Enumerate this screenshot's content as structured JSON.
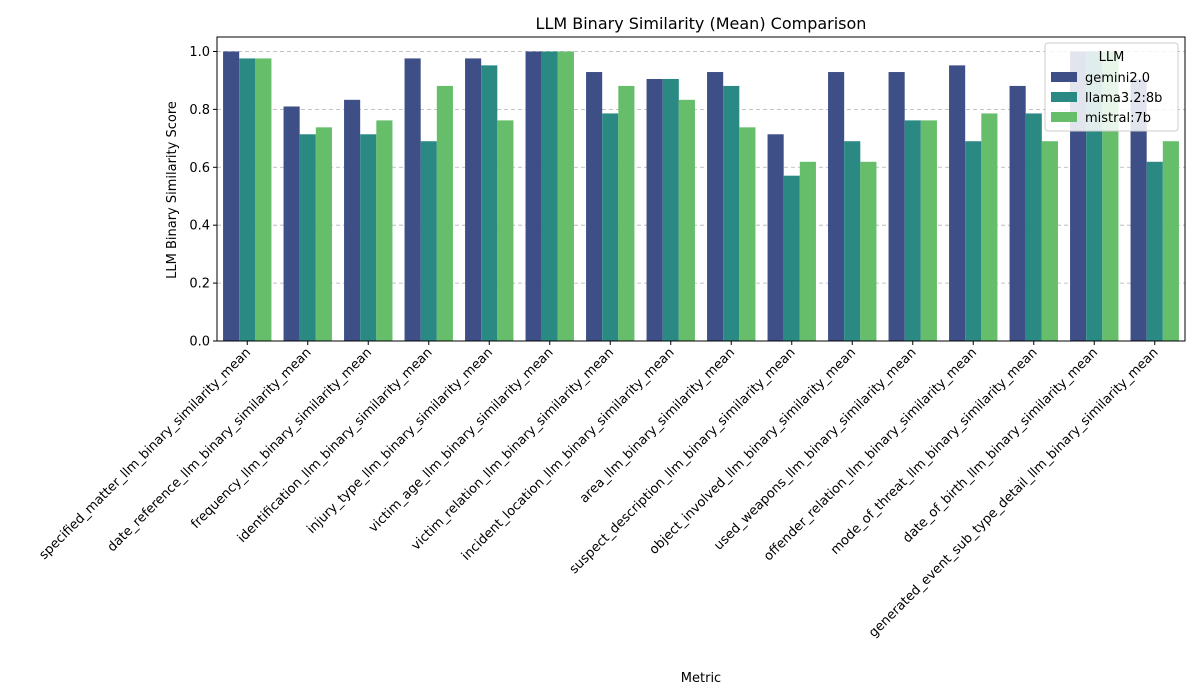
{
  "chart_data": {
    "type": "bar",
    "title": "LLM Binary Similarity (Mean) Comparison",
    "xlabel": "Metric",
    "ylabel": "LLM Binary Similarity Score",
    "ylim": [
      0,
      1.05
    ],
    "yticks": [
      0.0,
      0.2,
      0.4,
      0.6,
      0.8,
      1.0
    ],
    "ytick_labels": [
      "0.0",
      "0.2",
      "0.4",
      "0.6",
      "0.8",
      "1.0"
    ],
    "grid": true,
    "legend": {
      "title": "LLM",
      "placement": "top-right"
    },
    "categories": [
      "specified_matter_llm_binary_similarity_mean",
      "date_reference_llm_binary_similarity_mean",
      "frequency_llm_binary_similarity_mean",
      "identification_llm_binary_similarity_mean",
      "injury_type_llm_binary_similarity_mean",
      "victim_age_llm_binary_similarity_mean",
      "victim_relation_llm_binary_similarity_mean",
      "incident_location_llm_binary_similarity_mean",
      "area_llm_binary_similarity_mean",
      "suspect_description_llm_binary_similarity_mean",
      "object_involved_llm_binary_similarity_mean",
      "used_weapons_llm_binary_similarity_mean",
      "offender_relation_llm_binary_similarity_mean",
      "mode_of_threat_llm_binary_similarity_mean",
      "date_of_birth_llm_binary_similarity_mean",
      "generated_event_sub_type_detail_llm_binary_similarity_mean"
    ],
    "series": [
      {
        "name": "gemini2.0",
        "color": "#3e4f87",
        "values": [
          1.0,
          0.81,
          0.833,
          0.976,
          0.976,
          1.0,
          0.929,
          0.905,
          0.929,
          0.714,
          0.929,
          0.929,
          0.952,
          0.881,
          1.0,
          0.905
        ]
      },
      {
        "name": "llama3.2:8b",
        "color": "#2a8a83",
        "values": [
          0.976,
          0.714,
          0.714,
          0.69,
          0.952,
          1.0,
          0.786,
          0.905,
          0.881,
          0.571,
          0.69,
          0.762,
          0.69,
          0.786,
          1.0,
          0.619
        ]
      },
      {
        "name": "mistral:7b",
        "color": "#66be6a",
        "values": [
          0.976,
          0.738,
          0.762,
          0.881,
          0.762,
          1.0,
          0.881,
          0.833,
          0.738,
          0.619,
          0.619,
          0.762,
          0.786,
          0.69,
          1.0,
          0.69
        ]
      }
    ]
  }
}
